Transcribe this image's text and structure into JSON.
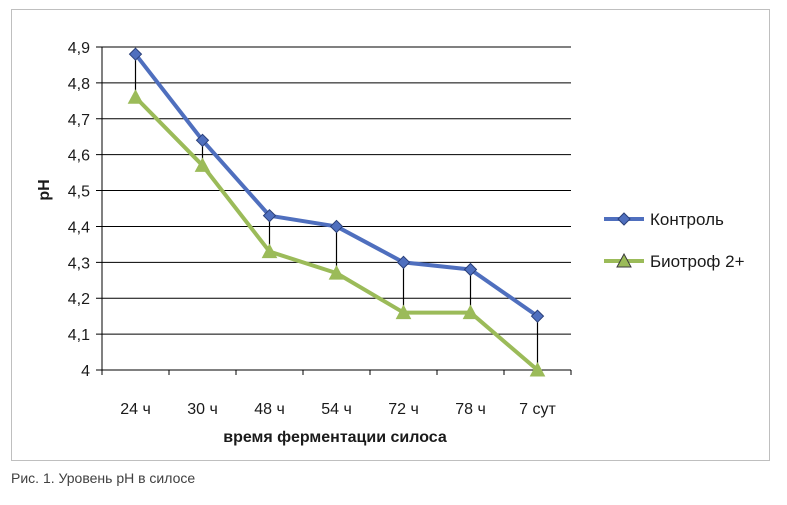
{
  "chart_data": {
    "type": "line",
    "title": "",
    "xlabel": "время ферментации силоса",
    "ylabel": "pH",
    "categories": [
      "24 ч",
      "30 ч",
      "48 ч",
      "54 ч",
      "72 ч",
      "78 ч",
      "7 сут"
    ],
    "ylim": [
      4,
      4.9
    ],
    "yticks": [
      "4",
      "4,1",
      "4,2",
      "4,3",
      "4,4",
      "4,5",
      "4,6",
      "4,7",
      "4,8",
      "4,9"
    ],
    "grid": true,
    "legend_position": "right",
    "series": [
      {
        "name": "Контроль",
        "values": [
          4.88,
          4.64,
          4.43,
          4.4,
          4.3,
          4.28,
          4.15
        ],
        "color": "#4f6fbe",
        "marker": "diamond"
      },
      {
        "name": "Биотроф 2+",
        "values": [
          4.76,
          4.57,
          4.33,
          4.27,
          4.16,
          4.16,
          4.0
        ],
        "color": "#9bbb59",
        "marker": "triangle"
      }
    ]
  },
  "caption": "Рис. 1. Уровень рН в силосе"
}
